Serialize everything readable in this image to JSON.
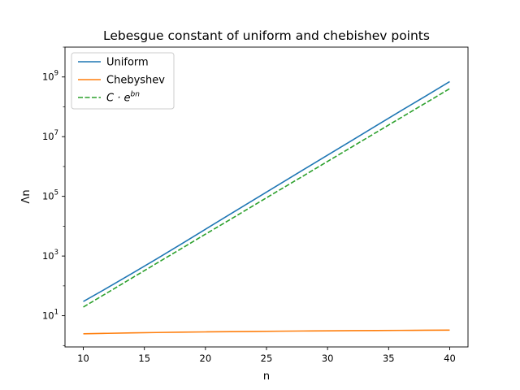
{
  "chart_data": {
    "type": "line",
    "title": "Lebesgue constant of uniform and chebishev points",
    "xlabel": "n",
    "ylabel": "Λn",
    "x_scale": "linear",
    "y_scale": "log",
    "xlim": [
      8.5,
      41.5
    ],
    "ylim": [
      0.9,
      10000000000
    ],
    "x_ticks": [
      10,
      15,
      20,
      25,
      30,
      35,
      40
    ],
    "x_tick_labels": [
      "10",
      "15",
      "20",
      "25",
      "30",
      "35",
      "40"
    ],
    "y_ticks": [
      10,
      1000,
      100000,
      10000000,
      1000000000
    ],
    "y_tick_exponents": [
      "1",
      "3",
      "5",
      "7",
      "9"
    ],
    "grid": false,
    "legend_position": "upper-left",
    "x": [
      10,
      12,
      14,
      16,
      18,
      20,
      22,
      24,
      26,
      28,
      30,
      32,
      34,
      36,
      38,
      40
    ],
    "series": [
      {
        "name": "Uniform",
        "color": "#1f77b4",
        "style": "solid",
        "values": [
          29.9,
          87.5,
          263,
          800,
          2500,
          7900,
          25000,
          78000,
          245000,
          770000,
          2400000,
          7500000,
          23500000,
          73000000,
          225000000,
          700000000
        ]
      },
      {
        "name": "Chebyshev",
        "color": "#ff7f0e",
        "style": "solid",
        "values": [
          2.49,
          2.57,
          2.66,
          2.74,
          2.81,
          2.87,
          2.93,
          2.98,
          3.03,
          3.08,
          3.12,
          3.16,
          3.19,
          3.23,
          3.26,
          3.29
        ]
      },
      {
        "name_parts": [
          "C · e",
          "bn"
        ],
        "color": "#2ca02c",
        "style": "dashed",
        "values": [
          19.5,
          60,
          185,
          570,
          1750,
          5400,
          16500,
          51000,
          157000,
          480000,
          1480000,
          4550000,
          14000000,
          43000000,
          132000000,
          405000000
        ]
      }
    ]
  }
}
